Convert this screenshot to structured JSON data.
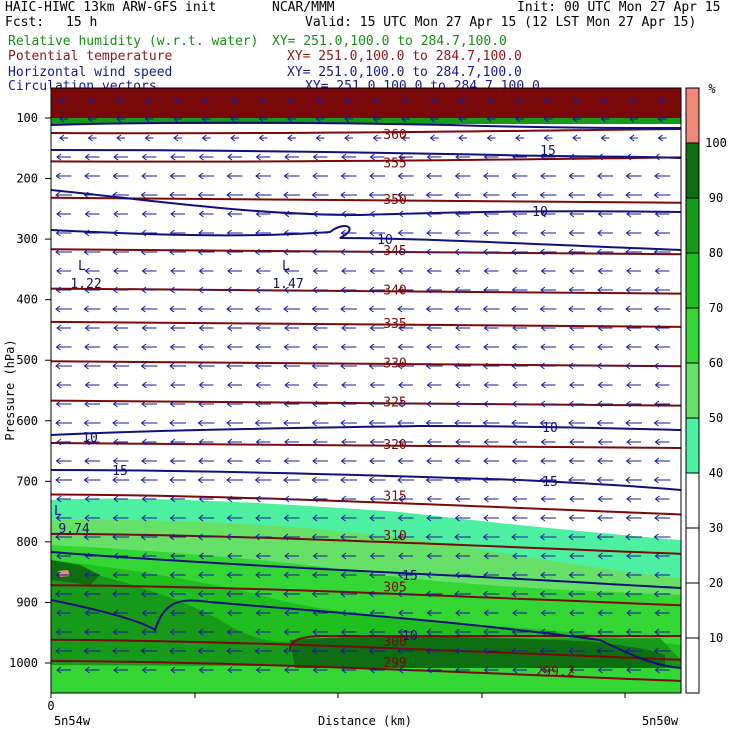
{
  "header": {
    "model": "HAIC-HIWC 13km ARW-GFS init",
    "org": "NCAR/MMM",
    "init": "Init: 00 UTC Mon 27 Apr 15",
    "fcst_label": "Fcst:",
    "fcst_value": "15 h",
    "valid": "Valid: 15 UTC Mon 27 Apr 15 (12 LST Mon 27 Apr 15)",
    "fields": [
      {
        "name": "Relative humidity (w.r.t. water)",
        "xy": "XY= 251.0,100.0 to 284.7,100.0",
        "color": "#1a8c1a"
      },
      {
        "name": "Potential temperature",
        "xy": "XY= 251.0,100.0 to 284.7,100.0",
        "color": "#8b1a1a"
      },
      {
        "name": "Horizontal wind speed",
        "xy": "XY= 251.0,100.0 to 284.7,100.0",
        "color": "#1a1a8b"
      },
      {
        "name": "Circulation vectors",
        "xy": "XY= 251.0,100.0 to 284.7,100.0",
        "color": "#1a1a8b"
      }
    ]
  },
  "chart_data": {
    "type": "heatmap",
    "subtype": "vertical cross-section",
    "ylabel": "Pressure (hPa)",
    "xlabel": "Distance (km)",
    "y_ticks": [
      100,
      200,
      300,
      400,
      500,
      600,
      700,
      800,
      900,
      1000
    ],
    "ylim": [
      1050,
      65
    ],
    "x_tick_label": "0",
    "x_endpoint_left": "5n54w",
    "x_endpoint_right": "5n50w",
    "colorbar": {
      "unit": "%",
      "levels": [
        10,
        20,
        30,
        40,
        50,
        60,
        70,
        80,
        90,
        100
      ],
      "colors": {
        "50": "#4df0a0",
        "60": "#66e066",
        "70": "#33d633",
        "80": "#1fbf1f",
        "90": "#17991a",
        "100": "#0d6e12",
        "max": "#f0887a"
      }
    },
    "theta_contours": {
      "color": "#7a0a0a",
      "series": [
        {
          "label": "299",
          "p": 1000
        },
        {
          "label": "300",
          "p": 965
        },
        {
          "label": "305",
          "p": 875
        },
        {
          "label": "310",
          "p": 790
        },
        {
          "label": "315",
          "p": 725
        },
        {
          "label": "320",
          "p": 640
        },
        {
          "label": "325",
          "p": 570
        },
        {
          "label": "330",
          "p": 505
        },
        {
          "label": "335",
          "p": 440
        },
        {
          "label": "340",
          "p": 385
        },
        {
          "label": "345",
          "p": 320
        },
        {
          "label": "350",
          "p": 235
        },
        {
          "label": "355",
          "p": 175
        },
        {
          "label": "360",
          "p": 128
        }
      ],
      "extra_labels": [
        "299.2"
      ]
    },
    "wind_contours": {
      "color": "#10107a",
      "labels": [
        "15",
        "10",
        "10",
        "10",
        "10",
        "15",
        "15",
        "15",
        "10"
      ],
      "minima": [
        {
          "marker": "L",
          "value": "1.22"
        },
        {
          "marker": "L",
          "value": "1.47"
        },
        {
          "marker": "L",
          "value": "9.74"
        }
      ]
    },
    "vectors": {
      "color": "#1a1a9a",
      "description": "easterly flow (arrows pointing west)"
    }
  }
}
